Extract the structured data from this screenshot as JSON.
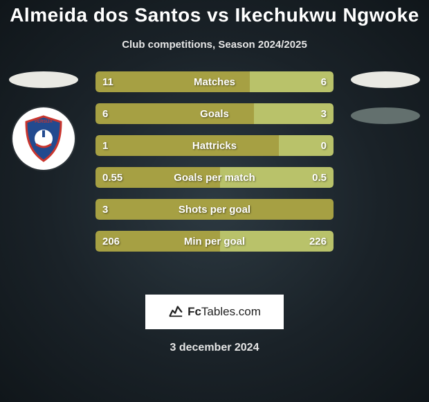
{
  "page": {
    "background_center": "#2d3a42",
    "background_edge": "#10161a"
  },
  "title": {
    "text": "Almeida dos Santos vs Ikechukwu Ngwoke",
    "color": "#ffffff",
    "fontsize": 28
  },
  "subtitle": {
    "text": "Club competitions, Season 2024/2025",
    "color": "#e6e6e6",
    "fontsize": 15
  },
  "players": {
    "left": {
      "ellipse_color": "#e9e9e3",
      "club_badge": {
        "bg": "#ffffff",
        "shield_fill": "#224a8f",
        "shield_stroke": "#c9352e",
        "top_text": "PERSIJA",
        "mid_text": "JAVA RAYA"
      }
    },
    "right": {
      "ellipse_color": "#e9e9e3",
      "ellipse2_color": "#63706e"
    }
  },
  "bars": {
    "track_color_left": "#a6a043",
    "track_color_right": "#b9c26a",
    "text_color": "#ffffff",
    "label_fontsize": 15,
    "value_fontsize": 15,
    "height": 30,
    "gap": 16,
    "items": [
      {
        "label": "Matches",
        "left": "11",
        "right": "6",
        "left_pct": 64.7,
        "right_pct": 35.3
      },
      {
        "label": "Goals",
        "left": "6",
        "right": "3",
        "left_pct": 66.7,
        "right_pct": 33.3
      },
      {
        "label": "Hattricks",
        "left": "1",
        "right": "0",
        "left_pct": 77.0,
        "right_pct": 23.0
      },
      {
        "label": "Goals per match",
        "left": "0.55",
        "right": "0.5",
        "left_pct": 52.4,
        "right_pct": 47.6
      },
      {
        "label": "Shots per goal",
        "left": "3",
        "right": "",
        "left_pct": 100,
        "right_pct": 0
      },
      {
        "label": "Min per goal",
        "left": "206",
        "right": "226",
        "left_pct": 52.3,
        "right_pct": 47.7
      }
    ]
  },
  "footer": {
    "brand_prefix": "Fc",
    "brand_suffix": "Tables.com",
    "date": "3 december 2024",
    "date_color": "#e6e6e6",
    "date_fontsize": 16
  }
}
